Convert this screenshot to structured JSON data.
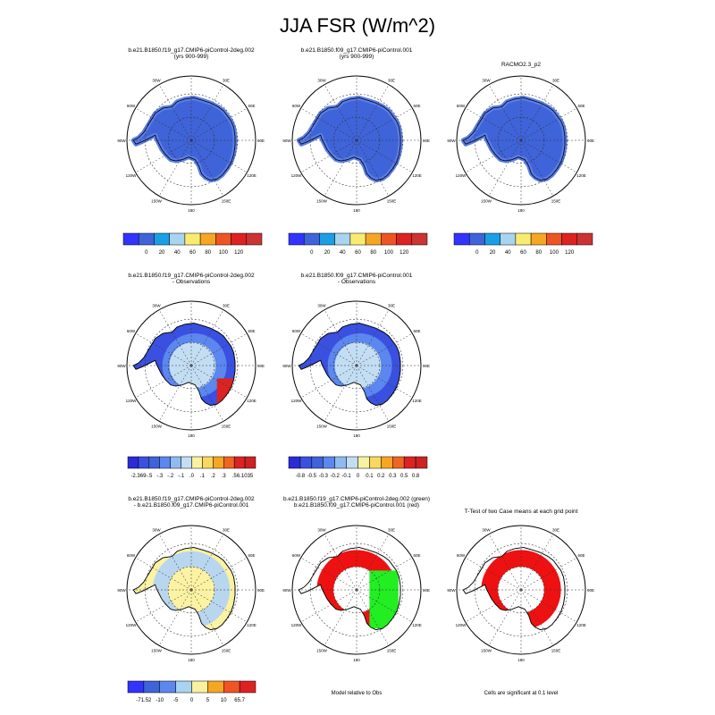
{
  "title": "JJA FSR (W/m^2)",
  "colors": {
    "land": "#3f63d8",
    "land_edge": "#5b7fe8",
    "sig_red": "#ee1111",
    "sig_green": "#22ee22",
    "diff_yellow": "#fbf2a3",
    "diff_blue": "#b8d6ee"
  },
  "lon_labels": [
    "30W",
    "30E",
    "60W",
    "60E",
    "90W",
    "90E",
    "120W",
    "120E",
    "150W",
    "150E",
    "180"
  ],
  "panels": [
    {
      "id": "p1",
      "kind": "abs",
      "title_lines": [
        "b.e21.B1850.f19_g17.CMIP6-piControl-2deg.002",
        "(yrs 900-999)"
      ]
    },
    {
      "id": "p2",
      "kind": "abs",
      "title_lines": [
        "b.e21.B1850.f09_g17.CMIP6-piControl.001",
        "(yrs 900-999)"
      ]
    },
    {
      "id": "p3",
      "kind": "abs",
      "title_lines": [
        "RACMO2.3_p2"
      ]
    },
    {
      "id": "p4",
      "kind": "bias",
      "title_lines": [
        "b.e21.B1850.f19_g17.CMIP6-piControl-2deg.002",
        "- Observations"
      ]
    },
    {
      "id": "p5",
      "kind": "bias2",
      "title_lines": [
        "b.e21.B1850.f09_g17.CMIP6-piControl.001",
        "- Observations"
      ]
    },
    {
      "id": "p7",
      "kind": "diff",
      "title_lines": [
        "b.e21.B1850.f19_g17.CMIP6-piControl-2deg.002",
        "- b.e21.B1850.f09_g17.CMIP6-piControl.001"
      ]
    },
    {
      "id": "p8",
      "kind": "rel",
      "title_lines": [
        "b.e21.B1850.f19_g17.CMIP6-piControl-2deg.002 (green)",
        "b.e21.B1850.f09_g17.CMIP6-piControl.001 (red)"
      ],
      "caption": "Model relative to Obs"
    },
    {
      "id": "p9",
      "kind": "ttest",
      "title_lines": [
        "T-Test of two Case means at each grid point"
      ],
      "caption": "Cells are significant at 0.1 level"
    }
  ],
  "colorbars": [
    {
      "id": "cb1",
      "labels": [
        "0",
        "20",
        "40",
        "60",
        "80",
        "100",
        "120"
      ],
      "colors": [
        "#3333ff",
        "#3f63d8",
        "#1a9fe6",
        "#a8d4ef",
        "#f8ec70",
        "#f5a623",
        "#ee5522",
        "#dd2222",
        "#cc3333"
      ]
    },
    {
      "id": "cb2",
      "labels": [
        "0",
        "20",
        "40",
        "60",
        "80",
        "100",
        "120"
      ],
      "colors": [
        "#3333ff",
        "#3f63d8",
        "#1a9fe6",
        "#a8d4ef",
        "#f8ec70",
        "#f5a623",
        "#ee5522",
        "#dd2222",
        "#cc3333"
      ]
    },
    {
      "id": "cb3",
      "labels": [
        "0",
        "20",
        "40",
        "60",
        "80",
        "100",
        "120"
      ],
      "colors": [
        "#3333ff",
        "#3f63d8",
        "#1a9fe6",
        "#a8d4ef",
        "#f8ec70",
        "#f5a623",
        "#ee5522",
        "#dd2222",
        "#cc3333"
      ]
    },
    {
      "id": "cb4",
      "labels": [
        "-2.369",
        "-.5",
        "-.3",
        "-.2",
        "-.1",
        ".0",
        ".1",
        ".2",
        ".3",
        ".5",
        "6.1035"
      ],
      "colors": [
        "#2b2bd8",
        "#3a50e0",
        "#3f63d8",
        "#5b87ee",
        "#8fbbf0",
        "#c3ddf3",
        "#f7f1a0",
        "#f8d860",
        "#f5a623",
        "#ee6622",
        "#dd2222",
        "#cc2222"
      ]
    },
    {
      "id": "cb5",
      "labels": [
        "-0.8",
        "-0.5",
        "-0.3",
        "-0.2",
        "-0.1",
        "0",
        "0.1",
        "0.2",
        "0.3",
        "0.5",
        "0.8"
      ],
      "colors": [
        "#2b2bd8",
        "#3a50e0",
        "#3f63d8",
        "#5b87ee",
        "#8fbbf0",
        "#c3ddf3",
        "#f7f1a0",
        "#f8d860",
        "#f5a623",
        "#ee6622",
        "#dd2222",
        "#cc2222"
      ]
    },
    {
      "id": "cb7",
      "labels": [
        "-71.52",
        "-10",
        "-5",
        "0",
        "5",
        "10",
        "65.7"
      ],
      "colors": [
        "#3333ff",
        "#3f63d8",
        "#5b87ee",
        "#a8d4ef",
        "#f7f1a0",
        "#f5a623",
        "#ee5522",
        "#dd2222"
      ]
    }
  ],
  "chart_data": {
    "type": "heatmap",
    "title": "JJA FSR (W/m^2)",
    "projection": "south polar stereographic",
    "variable": "FSR",
    "season": "JJA",
    "units": "W/m^2"
  }
}
